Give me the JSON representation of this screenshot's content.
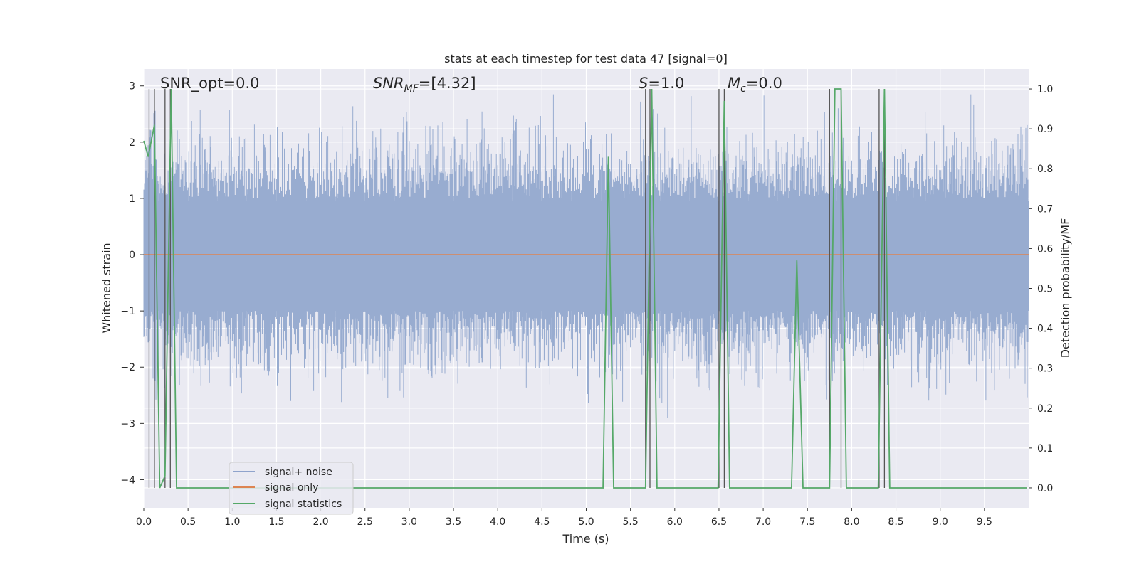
{
  "chart_data": {
    "type": "line",
    "title": "stats at each timestep for test data 47 [signal=0]",
    "xlabel": "Time (s)",
    "ylabel": "Whitened strain",
    "y2label": "Detection probability/MF",
    "xlim": [
      0,
      10
    ],
    "ylim": [
      -4.5,
      3.3
    ],
    "y2lim": [
      -0.05,
      1.05
    ],
    "xticks": [
      "0.0",
      "0.5",
      "1.0",
      "1.5",
      "2.0",
      "2.5",
      "3.0",
      "3.5",
      "4.0",
      "4.5",
      "5.0",
      "5.5",
      "6.0",
      "6.5",
      "7.0",
      "7.5",
      "8.0",
      "8.5",
      "9.0",
      "9.5"
    ],
    "yticks": [
      "3",
      "2",
      "1",
      "0",
      "−1",
      "−2",
      "−3",
      "−4"
    ],
    "y2ticks": [
      "1.0",
      "0.9",
      "0.8",
      "0.7",
      "0.6",
      "0.5",
      "0.4",
      "0.3",
      "0.2",
      "0.1",
      "0.0"
    ],
    "grid": true,
    "legend_position": "lower-left",
    "annotations": [
      {
        "text": "SNR_opt=0.0"
      },
      {
        "prefix": "SNR",
        "sub": "MF",
        "suffix": "=[4.32]"
      },
      {
        "prefix": "S",
        "sub": "",
        "suffix": "=1.0"
      },
      {
        "prefix": "M",
        "sub": "c",
        "suffix": "=0.0"
      }
    ],
    "series": [
      {
        "name": "signal+ noise",
        "color": "#8fa3cc",
        "description_level": "noise band, amplitude up to about ±2.8"
      },
      {
        "name": "signal only",
        "color": "#dd8452",
        "values_constant": 0
      },
      {
        "name": "signal statistics",
        "color": "#55a868",
        "axis": "right",
        "x": [
          0.0,
          0.05,
          0.12,
          0.18,
          0.24,
          0.31,
          0.37,
          5.19,
          5.25,
          5.31,
          5.67,
          5.74,
          5.8,
          6.49,
          6.56,
          6.62,
          7.32,
          7.38,
          7.45,
          7.75,
          7.81,
          7.88,
          7.94,
          8.3,
          8.37,
          8.43,
          9.98
        ],
        "values": [
          0.87,
          0.83,
          0.91,
          0.0,
          0.03,
          1.0,
          0.0,
          0.0,
          0.83,
          0.0,
          0.0,
          1.0,
          0.0,
          0.0,
          0.97,
          0.0,
          0.0,
          0.57,
          0.0,
          0.0,
          1.0,
          1.0,
          0.0,
          0.0,
          1.0,
          0.0,
          0.0
        ]
      }
    ],
    "vertical_lines_x": [
      0.06,
      0.12,
      0.24,
      0.3,
      5.67,
      5.72,
      6.5,
      6.56,
      7.75,
      7.88,
      8.31,
      8.37
    ]
  }
}
